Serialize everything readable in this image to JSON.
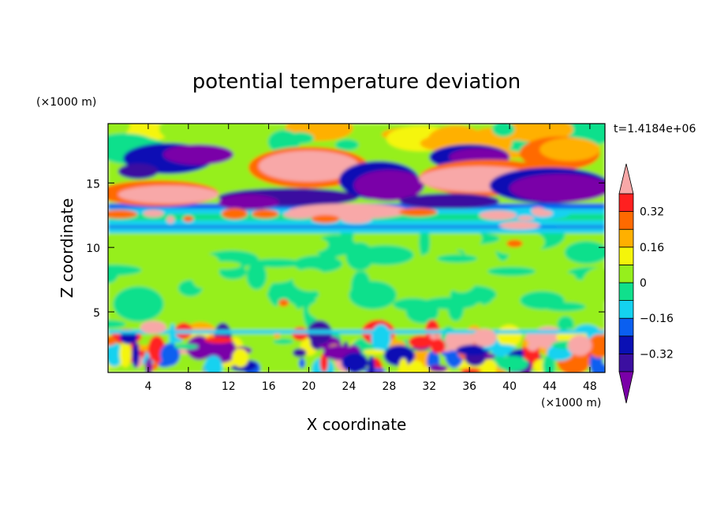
{
  "chart_data": {
    "type": "heatmap",
    "title": "potential temperature deviation",
    "xlabel": "X coordinate",
    "ylabel": "Z coordinate",
    "x_unit": "(×1000 m)",
    "y_unit": "(×1000 m)",
    "time_annotation": "t=1.4184e+06",
    "xlim": [
      0,
      49.5
    ],
    "ylim": [
      0.3,
      19.6
    ],
    "x_ticks": [
      4,
      8,
      12,
      16,
      20,
      24,
      28,
      32,
      36,
      40,
      44,
      48
    ],
    "x_tick_labels": [
      "4",
      "8",
      "12",
      "16",
      "20",
      "24",
      "28",
      "32",
      "36",
      "40",
      "44",
      "48"
    ],
    "y_ticks": [
      5,
      10,
      15
    ],
    "y_tick_labels": [
      "5",
      "10",
      "15"
    ],
    "colorbar": {
      "levels": [
        -0.4,
        -0.32,
        -0.24,
        -0.16,
        -0.08,
        0,
        0.08,
        0.16,
        0.24,
        0.32,
        0.4
      ],
      "tick_values": [
        0.32,
        0.16,
        0,
        -0.16,
        -0.32
      ],
      "tick_labels": [
        "0.32",
        "0.16",
        "0",
        "−0.16",
        "−0.32"
      ],
      "colors": [
        "#7a00a8",
        "#3b0fa0",
        "#0a10b4",
        "#0a5ff0",
        "#14d2f0",
        "#10e08c",
        "#96ef1c",
        "#f5f50a",
        "#ffb000",
        "#ff6a00",
        "#ff2020",
        "#f8a8a8"
      ],
      "extend": "both"
    },
    "layers": [
      {
        "z_range": [
          0.3,
          3.8
        ],
        "description_values": [
          -0.4,
          0.4
        ]
      },
      {
        "z_range": [
          3.8,
          11.2
        ],
        "description_values": [
          -0.08,
          0.08
        ]
      },
      {
        "z_range": [
          11.2,
          19.6
        ],
        "description_values": [
          -0.4,
          0.4
        ]
      }
    ]
  }
}
